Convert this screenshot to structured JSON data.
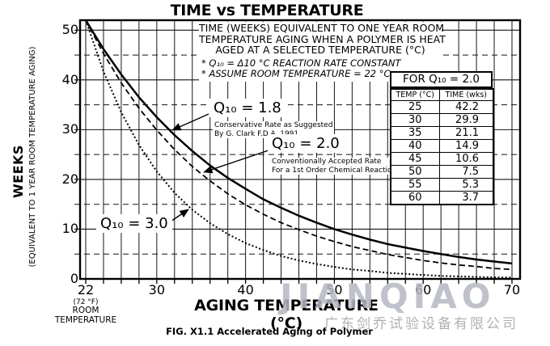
{
  "title": "TIME vs TEMPERATURE",
  "description_box": {
    "lines": [
      "TIME (WEEKS) EQUIVALENT TO ONE YEAR ROOM",
      "TEMPERATURE AGING WHEN A POLYMER IS HEAT",
      "AGED AT A SELECTED TEMPERATURE (°C)"
    ],
    "notes": [
      "* Q₁₀ = Δ10 °C REACTION RATE CONSTANT",
      "* ASSUME ROOM TEMPERATURE = 22 °C"
    ]
  },
  "annotations": [
    {
      "label": "Q₁₀ = 1.8",
      "note_lines": [
        "Conservative Rate as Suggested",
        "By G. Clark F.D.A. 1991"
      ]
    },
    {
      "label": "Q₁₀ = 2.0",
      "note_lines": [
        "Conventionally Accepted Rate",
        "For a 1st Order Chemical Reaction"
      ]
    },
    {
      "label": "Q₁₀ = 3.0",
      "note_lines": []
    }
  ],
  "table": {
    "title": "FOR Q₁₀ = 2.0",
    "columns": [
      "TEMP (°C)",
      "TIME (wks)"
    ],
    "rows": [
      [
        "25",
        "42.2"
      ],
      [
        "30",
        "29.9"
      ],
      [
        "35",
        "21.1"
      ],
      [
        "40",
        "14.9"
      ],
      [
        "45",
        "10.6"
      ],
      [
        "50",
        "7.5"
      ],
      [
        "55",
        "5.3"
      ],
      [
        "60",
        "3.7"
      ]
    ]
  },
  "x_axis": {
    "title": "AGING TEMPERATURE (°C)",
    "room_note": [
      "(72 °F)",
      "ROOM",
      "TEMPERATURE"
    ]
  },
  "y_axis": {
    "title": "WEEKS",
    "subtitle": "(EQUIVALENT TO 1 YEAR ROOM TEMPERATURE AGING)"
  },
  "caption": "FIG. X1.1 Accelerated Aging of Polymer",
  "watermark": {
    "latin": "JIANQIAO",
    "chinese": "广东剑乔试验设备有限公司",
    "latin_color": "#b4b8c3",
    "chinese_color": "#a9a9a9"
  },
  "chart_data": {
    "type": "line",
    "title": "TIME vs TEMPERATURE",
    "xlabel": "AGING TEMPERATURE (°C)",
    "ylabel": "WEEKS (EQUIVALENT TO 1 YEAR ROOM TEMPERATURE AGING)",
    "xlim": [
      21.4,
      70.9
    ],
    "ylim": [
      0,
      52
    ],
    "xticks": [
      22,
      30,
      40,
      50,
      60,
      70
    ],
    "yticks": [
      0,
      10,
      20,
      30,
      40,
      50
    ],
    "x_gridlines_every": 2,
    "y_solid_gridlines": [
      10,
      20,
      30,
      40,
      50
    ],
    "y_dashed_gridlines": [
      5,
      15,
      25,
      35,
      45
    ],
    "grid": true,
    "legend_position": "inline-annotations",
    "x": [
      22,
      24,
      26,
      28,
      30,
      32,
      34,
      36,
      38,
      40,
      42,
      44,
      46,
      48,
      50,
      52,
      54,
      56,
      58,
      60,
      62,
      64,
      66,
      68,
      70
    ],
    "series": [
      {
        "name": "Q₁₀ = 1.8",
        "q10": 1.8,
        "line_style": "solid",
        "values": [
          52,
          46.2,
          41.1,
          36.5,
          32.5,
          28.9,
          25.7,
          22.8,
          20.3,
          18.1,
          16.0,
          14.3,
          12.7,
          11.3,
          10.0,
          8.9,
          7.9,
          7.0,
          6.3,
          5.6,
          5.0,
          4.4,
          3.9,
          3.5,
          3.1
        ]
      },
      {
        "name": "Q₁₀ = 2.0",
        "q10": 2.0,
        "line_style": "dashed",
        "values": [
          52,
          45.3,
          39.4,
          34.3,
          29.9,
          26.0,
          22.6,
          19.7,
          17.1,
          14.9,
          13.0,
          11.3,
          9.9,
          8.6,
          7.5,
          6.5,
          5.7,
          4.9,
          4.3,
          3.7,
          3.2,
          2.8,
          2.5,
          2.1,
          1.9
        ]
      },
      {
        "name": "Q₁₀ = 3.0",
        "q10": 3.0,
        "line_style": "dotted",
        "values": [
          52,
          41.7,
          33.5,
          26.9,
          21.6,
          17.3,
          13.9,
          11.2,
          9.0,
          7.2,
          5.8,
          4.6,
          3.7,
          3.0,
          2.4,
          1.9,
          1.6,
          1.2,
          1.0,
          0.8,
          0.6,
          0.5,
          0.4,
          0.3,
          0.27
        ]
      }
    ]
  }
}
